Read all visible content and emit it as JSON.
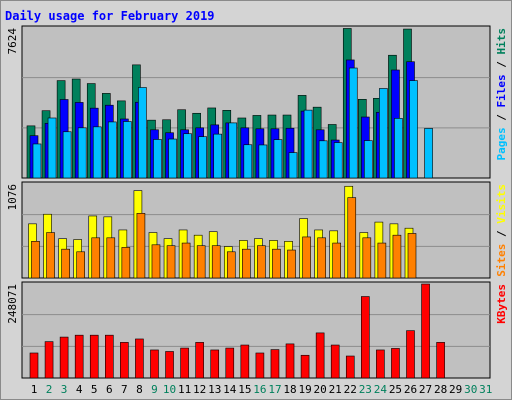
{
  "title": "Daily usage for February 2019",
  "colors": {
    "hits": "#00805c",
    "files": "#0000ff",
    "pages": "#00c0ff",
    "visits": "#ffff00",
    "sites": "#ff8000",
    "kbytes": "#ff0000",
    "panel_bg": "#c0c0c0",
    "frame_bg": "#d4d4d4",
    "title_text": "#0000ff"
  },
  "chart_data": {
    "type": "bar",
    "title": "Daily usage for February 2019",
    "categories": [
      "1",
      "2",
      "3",
      "4",
      "5",
      "6",
      "7",
      "8",
      "9",
      "10",
      "11",
      "12",
      "13",
      "14",
      "15",
      "16",
      "17",
      "18",
      "19",
      "20",
      "21",
      "22",
      "23",
      "24",
      "25",
      "26",
      "27",
      "28",
      "29",
      "30",
      "31"
    ],
    "weekend_days": [
      "2",
      "3",
      "9",
      "10",
      "16",
      "17",
      "23",
      "24",
      "30",
      "31"
    ],
    "panels": [
      {
        "name": "top",
        "ymax_label": "7624",
        "ylim": [
          0,
          7624
        ],
        "axis_label_parts": [
          {
            "text": "Pages",
            "color": "#00c0ff"
          },
          {
            "text": " / ",
            "color": "#000000"
          },
          {
            "text": "Files",
            "color": "#0000ff"
          },
          {
            "text": " / ",
            "color": "#000000"
          },
          {
            "text": "Hits",
            "color": "#00805c"
          }
        ],
        "series": [
          {
            "name": "Hits",
            "color": "#00805c",
            "values": [
              2650,
              3420,
              4950,
              5030,
              4800,
              4300,
              3920,
              5750,
              2940,
              2960,
              3470,
              3290,
              3560,
              3440,
              3050,
              3180,
              3200,
              3200,
              4200,
              3600,
              2720,
              7600,
              4000,
              4050,
              6240,
              7570,
              0,
              0,
              0,
              0,
              0
            ]
          },
          {
            "name": "Files",
            "color": "#0000ff",
            "values": [
              2150,
              2780,
              3990,
              3840,
              3550,
              3700,
              3000,
              3850,
              2450,
              2300,
              2450,
              2550,
              2700,
              2800,
              2550,
              2500,
              2500,
              2530,
              3400,
              2450,
              1930,
              6000,
              3100,
              3340,
              5490,
              5910,
              0,
              0,
              0,
              0,
              0
            ]
          },
          {
            "name": "Pages",
            "color": "#00c0ff",
            "values": [
              1730,
              3050,
              2350,
              2550,
              2600,
              2850,
              2870,
              4600,
              1960,
              1980,
              2250,
              2100,
              2230,
              2800,
              1690,
              1680,
              1950,
              1290,
              3450,
              1890,
              1800,
              5590,
              1900,
              4550,
              3030,
              4950,
              2520,
              0,
              0,
              0,
              0
            ]
          }
        ]
      },
      {
        "name": "middle",
        "ymax_label": "1076",
        "ylim": [
          0,
          1076
        ],
        "axis_label_parts": [
          {
            "text": "Sites",
            "color": "#ff8000"
          },
          {
            "text": " / ",
            "color": "#000000"
          },
          {
            "text": "Visits",
            "color": "#ffff00"
          }
        ],
        "series": [
          {
            "name": "Visits",
            "color": "#ffff00",
            "values": [
              620,
              730,
              450,
              440,
              710,
              700,
              550,
              1000,
              520,
              450,
              550,
              490,
              530,
              360,
              430,
              450,
              430,
              420,
              680,
              550,
              540,
              1050,
              520,
              640,
              620,
              570,
              0,
              0,
              0,
              0,
              0
            ]
          },
          {
            "name": "Sites",
            "color": "#ff8000",
            "values": [
              420,
              520,
              330,
              300,
              460,
              460,
              350,
              740,
              380,
              370,
              400,
              370,
              370,
              300,
              330,
              370,
              330,
              320,
              470,
              460,
              400,
              920,
              460,
              400,
              490,
              510,
              0,
              0,
              0,
              0,
              0
            ]
          }
        ]
      },
      {
        "name": "bottom",
        "ymax_label": "248071",
        "ylim": [
          0,
          248071
        ],
        "axis_label_parts": [
          {
            "text": "KBytes",
            "color": "#ff0000"
          }
        ],
        "series": [
          {
            "name": "KBytes",
            "color": "#ff0000",
            "values": [
              66000,
              96000,
              108000,
              113000,
              113000,
              113000,
              94000,
              103000,
              74000,
              70000,
              79000,
              94000,
              74000,
              79000,
              87000,
              66000,
              75000,
              90000,
              60000,
              119000,
              87000,
              58000,
              215000,
              74000,
              78000,
              125000,
              248000,
              94000,
              0,
              0,
              0
            ]
          }
        ]
      }
    ]
  }
}
